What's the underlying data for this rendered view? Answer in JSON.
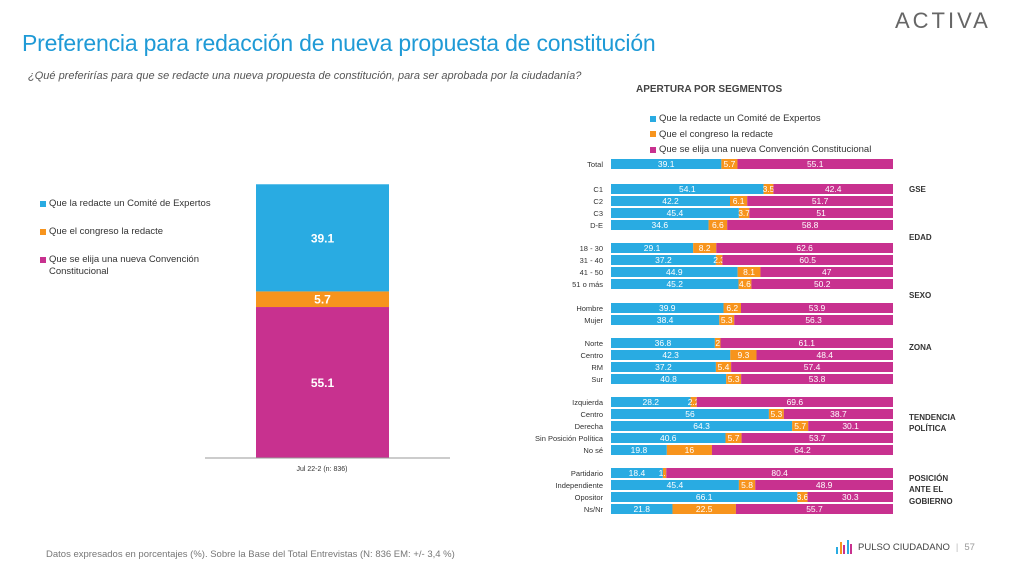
{
  "header": {
    "title": "Preferencia para redacción de nueva propuesta de constitución",
    "subtitle": "¿Qué preferirías para que se redacte una nueva propuesta de constitución, para ser aprobada por la ciudadanía?",
    "logo": "ACTIVA"
  },
  "footer": {
    "note": "Datos expresados en porcentajes (%). Sobre la Base del Total Entrevistas (N: 836  EM: +/- 3,4 %)",
    "brand": "PULSO CIUDADANO",
    "page": "57"
  },
  "colors": {
    "expertos": "#29abe2",
    "congreso": "#f7941d",
    "convencion": "#c8318f"
  },
  "chart_data": [
    {
      "type": "bar",
      "stacked": true,
      "categories": [
        "Jul 22-2 (n: 836)"
      ],
      "series": [
        {
          "name": "Que la redacte un Comité de Expertos",
          "values": [
            39.1
          ]
        },
        {
          "name": "Que el congreso la redacte",
          "values": [
            5.7
          ]
        },
        {
          "name": "Que se elija una nueva Convención Constitucional",
          "values": [
            55.1
          ]
        }
      ],
      "legend": "left"
    },
    {
      "type": "bar",
      "orientation": "horizontal",
      "stacked": true,
      "title": "APERTURA POR SEGMENTOS",
      "legend": "top",
      "series_names": [
        "Que la redacte un Comité de Expertos",
        "Que el congreso la redacte",
        "Que se elija una nueva Convención Constitucional"
      ],
      "groups": [
        {
          "name": "",
          "rows": [
            {
              "label": "Total",
              "values": [
                39.1,
                5.7,
                55.1
              ]
            }
          ]
        },
        {
          "name": "GSE",
          "rows": [
            {
              "label": "C1",
              "values": [
                54.1,
                3.5,
                42.4
              ]
            },
            {
              "label": "C2",
              "values": [
                42.2,
                6.1,
                51.7
              ]
            },
            {
              "label": "C3",
              "values": [
                45.4,
                3.7,
                51
              ]
            },
            {
              "label": "D-E",
              "values": [
                34.6,
                6.6,
                58.8
              ]
            }
          ]
        },
        {
          "name": "EDAD",
          "rows": [
            {
              "label": "18 - 30",
              "values": [
                29.1,
                8.2,
                62.6
              ]
            },
            {
              "label": "31 - 40",
              "values": [
                37.2,
                2.3,
                60.5
              ]
            },
            {
              "label": "41 - 50",
              "values": [
                44.9,
                8.1,
                47
              ]
            },
            {
              "label": "51 o más",
              "values": [
                45.2,
                4.6,
                50.2
              ]
            }
          ]
        },
        {
          "name": "SEXO",
          "rows": [
            {
              "label": "Hombre",
              "values": [
                39.9,
                6.2,
                53.9
              ]
            },
            {
              "label": "Mujer",
              "values": [
                38.4,
                5.3,
                56.3
              ]
            }
          ]
        },
        {
          "name": "ZONA",
          "rows": [
            {
              "label": "Norte",
              "values": [
                36.8,
                2,
                61.1
              ]
            },
            {
              "label": "Centro",
              "values": [
                42.3,
                9.3,
                48.4
              ]
            },
            {
              "label": "RM",
              "values": [
                37.2,
                5.4,
                57.4
              ]
            },
            {
              "label": "Sur",
              "values": [
                40.8,
                5.3,
                53.8
              ]
            }
          ]
        },
        {
          "name": "TENDENCIA POLÍTICA",
          "rows": [
            {
              "label": "Izquierda",
              "values": [
                28.2,
                2.2,
                69.6
              ]
            },
            {
              "label": "Centro",
              "values": [
                56,
                5.3,
                38.7
              ]
            },
            {
              "label": "Derecha",
              "values": [
                64.3,
                5.7,
                30.1
              ]
            },
            {
              "label": "Sin Posición Política",
              "values": [
                40.6,
                5.7,
                53.7
              ]
            },
            {
              "label": "No sé",
              "values": [
                19.8,
                16,
                64.2
              ]
            }
          ]
        },
        {
          "name": "POSICIÓN ANTE EL GOBIERNO",
          "rows": [
            {
              "label": "Partidario",
              "values": [
                18.4,
                1.2,
                80.4
              ]
            },
            {
              "label": "Independiente",
              "values": [
                45.4,
                5.8,
                48.9
              ]
            },
            {
              "label": "Opositor",
              "values": [
                66.1,
                3.6,
                30.3
              ]
            },
            {
              "label": "Ns/Nr",
              "values": [
                21.8,
                22.5,
                55.7
              ]
            }
          ]
        }
      ]
    }
  ]
}
